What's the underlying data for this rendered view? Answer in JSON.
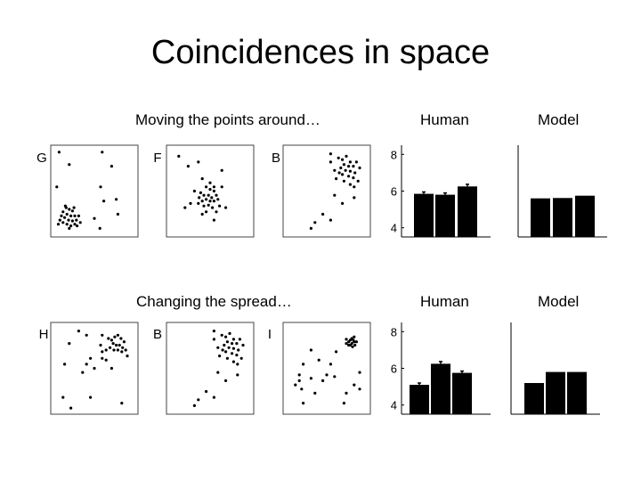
{
  "title": "Coincidences in space",
  "rows": [
    {
      "caption": "Moving the points around…",
      "human_label": "Human",
      "model_label": "Model"
    },
    {
      "caption": "Changing the spread…",
      "human_label": "Human",
      "model_label": "Model"
    }
  ],
  "chart_data": [
    {
      "type": "scatter",
      "label": "G",
      "xlim": [
        0,
        1
      ],
      "ylim": [
        0,
        1
      ],
      "grid": false,
      "points": [
        [
          0.05,
          0.97
        ],
        [
          0.18,
          0.82
        ],
        [
          0.6,
          0.97
        ],
        [
          0.72,
          0.8
        ],
        [
          0.58,
          0.55
        ],
        [
          0.62,
          0.38
        ],
        [
          0.78,
          0.4
        ],
        [
          0.8,
          0.22
        ],
        [
          0.02,
          0.55
        ],
        [
          0.14,
          0.3
        ],
        [
          0.18,
          0.28
        ],
        [
          0.22,
          0.26
        ],
        [
          0.1,
          0.25
        ],
        [
          0.15,
          0.22
        ],
        [
          0.2,
          0.2
        ],
        [
          0.25,
          0.2
        ],
        [
          0.08,
          0.2
        ],
        [
          0.12,
          0.18
        ],
        [
          0.17,
          0.15
        ],
        [
          0.22,
          0.14
        ],
        [
          0.27,
          0.15
        ],
        [
          0.1,
          0.12
        ],
        [
          0.15,
          0.1
        ],
        [
          0.2,
          0.08
        ],
        [
          0.25,
          0.1
        ],
        [
          0.3,
          0.2
        ],
        [
          0.06,
          0.15
        ],
        [
          0.13,
          0.32
        ],
        [
          0.24,
          0.3
        ],
        [
          0.18,
          0.05
        ],
        [
          0.28,
          0.08
        ],
        [
          0.04,
          0.1
        ],
        [
          0.32,
          0.12
        ],
        [
          0.5,
          0.17
        ],
        [
          0.57,
          0.05
        ]
      ]
    },
    {
      "type": "scatter",
      "label": "F",
      "xlim": [
        0,
        1
      ],
      "ylim": [
        0,
        1
      ],
      "grid": false,
      "points": [
        [
          0.1,
          0.92
        ],
        [
          0.22,
          0.8
        ],
        [
          0.35,
          0.85
        ],
        [
          0.65,
          0.75
        ],
        [
          0.4,
          0.65
        ],
        [
          0.5,
          0.6
        ],
        [
          0.45,
          0.55
        ],
        [
          0.5,
          0.52
        ],
        [
          0.55,
          0.5
        ],
        [
          0.38,
          0.48
        ],
        [
          0.42,
          0.45
        ],
        [
          0.48,
          0.45
        ],
        [
          0.52,
          0.42
        ],
        [
          0.58,
          0.45
        ],
        [
          0.36,
          0.42
        ],
        [
          0.4,
          0.38
        ],
        [
          0.45,
          0.4
        ],
        [
          0.5,
          0.38
        ],
        [
          0.55,
          0.38
        ],
        [
          0.6,
          0.4
        ],
        [
          0.42,
          0.32
        ],
        [
          0.48,
          0.33
        ],
        [
          0.53,
          0.3
        ],
        [
          0.62,
          0.32
        ],
        [
          0.35,
          0.35
        ],
        [
          0.55,
          0.55
        ],
        [
          0.3,
          0.5
        ],
        [
          0.45,
          0.25
        ],
        [
          0.58,
          0.25
        ],
        [
          0.65,
          0.55
        ],
        [
          0.4,
          0.22
        ],
        [
          0.55,
          0.15
        ],
        [
          0.25,
          0.35
        ],
        [
          0.7,
          0.3
        ],
        [
          0.18,
          0.3
        ]
      ]
    },
    {
      "type": "scatter",
      "label": "B",
      "xlim": [
        0,
        1
      ],
      "ylim": [
        0,
        1
      ],
      "grid": false,
      "points": [
        [
          0.55,
          0.95
        ],
        [
          0.65,
          0.9
        ],
        [
          0.7,
          0.88
        ],
        [
          0.75,
          0.92
        ],
        [
          0.8,
          0.85
        ],
        [
          0.72,
          0.82
        ],
        [
          0.78,
          0.8
        ],
        [
          0.84,
          0.8
        ],
        [
          0.68,
          0.78
        ],
        [
          0.74,
          0.75
        ],
        [
          0.8,
          0.74
        ],
        [
          0.86,
          0.72
        ],
        [
          0.6,
          0.75
        ],
        [
          0.66,
          0.72
        ],
        [
          0.7,
          0.7
        ],
        [
          0.78,
          0.68
        ],
        [
          0.84,
          0.66
        ],
        [
          0.88,
          0.85
        ],
        [
          0.9,
          0.62
        ],
        [
          0.72,
          0.62
        ],
        [
          0.62,
          0.65
        ],
        [
          0.8,
          0.58
        ],
        [
          0.85,
          0.55
        ],
        [
          0.55,
          0.85
        ],
        [
          0.92,
          0.78
        ],
        [
          0.6,
          0.45
        ],
        [
          0.85,
          0.42
        ],
        [
          0.7,
          0.35
        ],
        [
          0.45,
          0.22
        ],
        [
          0.35,
          0.12
        ],
        [
          0.3,
          0.05
        ],
        [
          0.55,
          0.15
        ]
      ]
    },
    {
      "type": "bar",
      "label": "Human",
      "ylim": [
        3.5,
        8.5
      ],
      "yticks": [
        4,
        6,
        8
      ],
      "values": [
        5.85,
        5.8,
        6.25
      ],
      "errors": [
        0.1,
        0.1,
        0.12
      ]
    },
    {
      "type": "bar",
      "label": "Model",
      "ylim": [
        3.5,
        8.5
      ],
      "values": [
        5.6,
        5.62,
        5.75
      ],
      "errors": [
        0,
        0,
        0
      ]
    },
    {
      "type": "scatter",
      "label": "H",
      "xlim": [
        0,
        1
      ],
      "ylim": [
        0,
        1
      ],
      "grid": false,
      "points": [
        [
          0.3,
          0.95
        ],
        [
          0.4,
          0.9
        ],
        [
          0.6,
          0.9
        ],
        [
          0.68,
          0.86
        ],
        [
          0.72,
          0.84
        ],
        [
          0.76,
          0.88
        ],
        [
          0.8,
          0.9
        ],
        [
          0.84,
          0.86
        ],
        [
          0.88,
          0.82
        ],
        [
          0.74,
          0.8
        ],
        [
          0.78,
          0.78
        ],
        [
          0.82,
          0.78
        ],
        [
          0.86,
          0.75
        ],
        [
          0.7,
          0.75
        ],
        [
          0.75,
          0.72
        ],
        [
          0.8,
          0.72
        ],
        [
          0.85,
          0.7
        ],
        [
          0.65,
          0.72
        ],
        [
          0.6,
          0.7
        ],
        [
          0.9,
          0.72
        ],
        [
          0.92,
          0.65
        ],
        [
          0.58,
          0.78
        ],
        [
          0.18,
          0.8
        ],
        [
          0.12,
          0.55
        ],
        [
          0.45,
          0.62
        ],
        [
          0.6,
          0.62
        ],
        [
          0.65,
          0.6
        ],
        [
          0.72,
          0.5
        ],
        [
          0.4,
          0.55
        ],
        [
          0.5,
          0.5
        ],
        [
          0.35,
          0.45
        ],
        [
          0.45,
          0.15
        ],
        [
          0.2,
          0.02
        ],
        [
          0.85,
          0.08
        ],
        [
          0.1,
          0.15
        ]
      ]
    },
    {
      "type": "scatter",
      "label": "B",
      "xlim": [
        0,
        1
      ],
      "ylim": [
        0,
        1
      ],
      "grid": false,
      "points": [
        [
          0.55,
          0.95
        ],
        [
          0.65,
          0.9
        ],
        [
          0.7,
          0.88
        ],
        [
          0.75,
          0.92
        ],
        [
          0.8,
          0.85
        ],
        [
          0.72,
          0.82
        ],
        [
          0.78,
          0.8
        ],
        [
          0.84,
          0.8
        ],
        [
          0.68,
          0.78
        ],
        [
          0.74,
          0.75
        ],
        [
          0.8,
          0.74
        ],
        [
          0.86,
          0.72
        ],
        [
          0.6,
          0.75
        ],
        [
          0.66,
          0.72
        ],
        [
          0.7,
          0.7
        ],
        [
          0.78,
          0.68
        ],
        [
          0.84,
          0.66
        ],
        [
          0.88,
          0.85
        ],
        [
          0.9,
          0.62
        ],
        [
          0.72,
          0.62
        ],
        [
          0.62,
          0.65
        ],
        [
          0.8,
          0.58
        ],
        [
          0.85,
          0.55
        ],
        [
          0.55,
          0.85
        ],
        [
          0.92,
          0.78
        ],
        [
          0.6,
          0.45
        ],
        [
          0.85,
          0.42
        ],
        [
          0.7,
          0.35
        ],
        [
          0.45,
          0.22
        ],
        [
          0.35,
          0.12
        ],
        [
          0.3,
          0.05
        ],
        [
          0.55,
          0.15
        ]
      ]
    },
    {
      "type": "scatter",
      "label": "I",
      "xlim": [
        0,
        1
      ],
      "ylim": [
        0,
        1
      ],
      "grid": false,
      "points": [
        [
          0.78,
          0.82
        ],
        [
          0.8,
          0.84
        ],
        [
          0.82,
          0.8
        ],
        [
          0.85,
          0.82
        ],
        [
          0.82,
          0.86
        ],
        [
          0.86,
          0.78
        ],
        [
          0.8,
          0.78
        ],
        [
          0.84,
          0.84
        ],
        [
          0.88,
          0.82
        ],
        [
          0.78,
          0.78
        ],
        [
          0.75,
          0.8
        ],
        [
          0.83,
          0.76
        ],
        [
          0.75,
          0.85
        ],
        [
          0.85,
          0.88
        ],
        [
          0.3,
          0.72
        ],
        [
          0.4,
          0.6
        ],
        [
          0.55,
          0.55
        ],
        [
          0.62,
          0.7
        ],
        [
          0.2,
          0.55
        ],
        [
          0.15,
          0.42
        ],
        [
          0.5,
          0.42
        ],
        [
          0.3,
          0.38
        ],
        [
          0.45,
          0.35
        ],
        [
          0.1,
          0.3
        ],
        [
          0.15,
          0.35
        ],
        [
          0.18,
          0.25
        ],
        [
          0.35,
          0.2
        ],
        [
          0.92,
          0.45
        ],
        [
          0.85,
          0.3
        ],
        [
          0.92,
          0.25
        ],
        [
          0.75,
          0.2
        ],
        [
          0.72,
          0.08
        ],
        [
          0.6,
          0.4
        ],
        [
          0.2,
          0.08
        ]
      ]
    },
    {
      "type": "bar",
      "label": "Human",
      "ylim": [
        3.5,
        8.5
      ],
      "yticks": [
        4,
        6,
        8
      ],
      "values": [
        5.1,
        6.25,
        5.75
      ],
      "errors": [
        0.1,
        0.12,
        0.1
      ]
    },
    {
      "type": "bar",
      "label": "Model",
      "ylim": [
        3.5,
        8.5
      ],
      "values": [
        5.2,
        5.8,
        5.8
      ],
      "errors": [
        0,
        0,
        0
      ]
    }
  ]
}
